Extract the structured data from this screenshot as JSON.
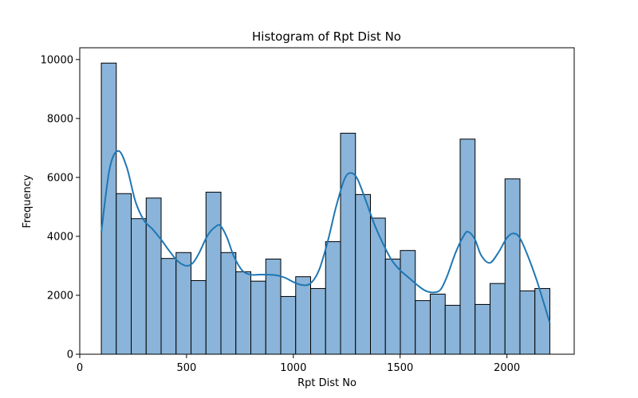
{
  "chart_data": {
    "type": "bar",
    "title": "Histogram of Rpt Dist No",
    "xlabel": "Rpt Dist No",
    "ylabel": "Frequency",
    "xlim": [
      0,
      2315
    ],
    "ylim": [
      0,
      10400
    ],
    "xticks": [
      0,
      500,
      1000,
      1500,
      2000
    ],
    "yticks": [
      0,
      2000,
      4000,
      6000,
      8000,
      10000
    ],
    "grid": false,
    "bin_edges": [
      101,
      171,
      241,
      311,
      381,
      451,
      521,
      591,
      661,
      731,
      801,
      871,
      941,
      1011,
      1081,
      1151,
      1221,
      1291,
      1361,
      1431,
      1501,
      1571,
      1641,
      1711,
      1781,
      1851,
      1921,
      1991,
      2061,
      2131,
      2201
    ],
    "values": [
      9880,
      5450,
      4600,
      5300,
      3250,
      3450,
      2500,
      5500,
      3450,
      2800,
      2480,
      3230,
      1960,
      2630,
      2230,
      3820,
      7500,
      5420,
      4620,
      3230,
      3520,
      1820,
      2040,
      1660,
      7300,
      1690,
      2400,
      5950,
      2150,
      2230
    ],
    "kde": {
      "x": [
        101,
        140,
        180,
        220,
        260,
        300,
        340,
        380,
        420,
        460,
        500,
        530,
        560,
        600,
        640,
        660,
        690,
        720,
        760,
        800,
        840,
        880,
        920,
        960,
        1000,
        1040,
        1080,
        1120,
        1160,
        1200,
        1240,
        1270,
        1300,
        1340,
        1380,
        1420,
        1460,
        1500,
        1540,
        1580,
        1620,
        1660,
        1690,
        1720,
        1760,
        1800,
        1820,
        1850,
        1880,
        1920,
        1960,
        2000,
        2030,
        2060,
        2100,
        2140,
        2170,
        2201
      ],
      "y": [
        4150,
        6300,
        6900,
        6350,
        5200,
        4550,
        4250,
        3900,
        3500,
        3150,
        3000,
        3100,
        3450,
        4050,
        4350,
        4350,
        3950,
        3350,
        2850,
        2700,
        2700,
        2700,
        2680,
        2600,
        2450,
        2350,
        2400,
        2850,
        3800,
        5000,
        5950,
        6150,
        5950,
        5200,
        4400,
        3750,
        3200,
        2850,
        2600,
        2350,
        2150,
        2100,
        2200,
        2650,
        3450,
        4050,
        4150,
        3900,
        3350,
        3100,
        3450,
        3950,
        4100,
        3950,
        3300,
        2500,
        1800,
        1060
      ]
    },
    "colors": {
      "bar_fill": "#8ab4d9",
      "bar_edge": "#000000",
      "kde_line": "#1f77b4",
      "axes": "#000000"
    }
  }
}
